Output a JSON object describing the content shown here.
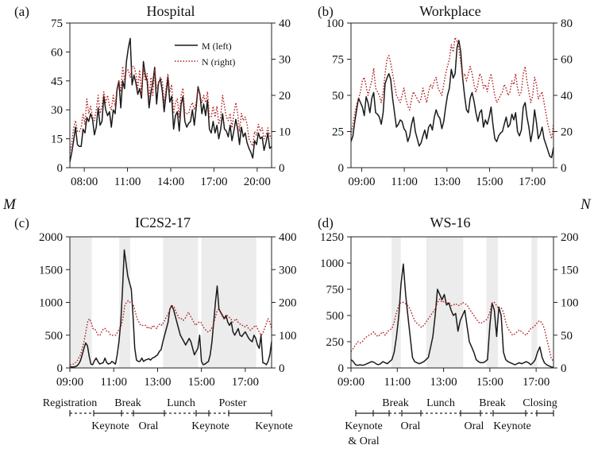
{
  "figure": {
    "side_left_label": "M",
    "side_right_label": "N"
  },
  "colors": {
    "m_line": "#1a1a1a",
    "n_line": "#b22222",
    "shade": "#ececec"
  },
  "chart_data": [
    {
      "id": "a",
      "type": "line",
      "panel_label": "(a)",
      "title": "Hospital",
      "legend": {
        "placement": "top-right",
        "m": "M (left)",
        "n": "N (right)"
      },
      "x_start": 7.0,
      "x_end": 21.0,
      "xticks": [
        8,
        11,
        14,
        17,
        20
      ],
      "xtick_labels": [
        "08:00",
        "11:00",
        "14:00",
        "17:00",
        "20:00"
      ],
      "ylim_left": [
        0,
        75
      ],
      "yticks_left": [
        0,
        15,
        30,
        45,
        60,
        75
      ],
      "ylim_right": [
        0,
        40
      ],
      "yticks_right": [
        0,
        10,
        20,
        30,
        40
      ],
      "series": [
        {
          "name": "M",
          "axis": "left",
          "style": "solid",
          "values": [
            3,
            8,
            14,
            21,
            12,
            11,
            11,
            20,
            18,
            26,
            24,
            28,
            25,
            17,
            21,
            31,
            22,
            24,
            37,
            30,
            27,
            29,
            21,
            30,
            28,
            40,
            45,
            31,
            45,
            41,
            55,
            62,
            67,
            43,
            48,
            44,
            38,
            41,
            36,
            55,
            48,
            45,
            31,
            39,
            44,
            52,
            33,
            44,
            46,
            40,
            29,
            38,
            47,
            34,
            37,
            20,
            27,
            29,
            19,
            33,
            37,
            24,
            21,
            23,
            24,
            30,
            22,
            31,
            42,
            38,
            28,
            33,
            27,
            35,
            20,
            18,
            24,
            18,
            22,
            15,
            20,
            28,
            20,
            19,
            16,
            22,
            14,
            19,
            25,
            20,
            12,
            21,
            16,
            18,
            13,
            10,
            8,
            5,
            14,
            12,
            18,
            15,
            16,
            9,
            13,
            18,
            10,
            11
          ],
          "source_note": "approximate readings"
        },
        {
          "name": "N",
          "axis": "right",
          "style": "dotted",
          "values": [
            4,
            7,
            11,
            13,
            10,
            10,
            11,
            15,
            12,
            19,
            15,
            17,
            14,
            13,
            16,
            20,
            15,
            17,
            21,
            18,
            20,
            17,
            16,
            20,
            17,
            22,
            24,
            21,
            28,
            24,
            27,
            27,
            25,
            28,
            28,
            26,
            22,
            27,
            20,
            28,
            24,
            26,
            19,
            25,
            20,
            27,
            22,
            23,
            25,
            24,
            18,
            22,
            26,
            21,
            23,
            15,
            18,
            19,
            14,
            20,
            22,
            15,
            15,
            15,
            17,
            18,
            16,
            18,
            22,
            20,
            18,
            20,
            18,
            21,
            14,
            14,
            17,
            14,
            17,
            12,
            14,
            20,
            17,
            14,
            13,
            15,
            11,
            15,
            18,
            15,
            10,
            15,
            13,
            14,
            12,
            8,
            7,
            6,
            10,
            9,
            12,
            10,
            11,
            8,
            9,
            11,
            9,
            8
          ]
        }
      ]
    },
    {
      "id": "b",
      "type": "line",
      "panel_label": "(b)",
      "title": "Workplace",
      "x_start": 8.5,
      "x_end": 18.0,
      "xticks": [
        9,
        11,
        13,
        15,
        17
      ],
      "xtick_labels": [
        "09:00",
        "11:00",
        "13:00",
        "15:00",
        "17:00"
      ],
      "ylim_left": [
        0,
        100
      ],
      "yticks_left": [
        0,
        25,
        50,
        75,
        100
      ],
      "ylim_right": [
        0,
        80
      ],
      "yticks_right": [
        0,
        20,
        40,
        60,
        80
      ],
      "series": [
        {
          "name": "M",
          "axis": "left",
          "style": "solid",
          "values": [
            18,
            22,
            32,
            40,
            48,
            45,
            42,
            36,
            49,
            45,
            38,
            48,
            52,
            38,
            37,
            35,
            30,
            38,
            58,
            62,
            65,
            61,
            48,
            38,
            28,
            30,
            33,
            32,
            27,
            25,
            18,
            22,
            30,
            35,
            25,
            20,
            15,
            17,
            22,
            26,
            20,
            28,
            30,
            26,
            35,
            40,
            36,
            34,
            27,
            32,
            42,
            50,
            55,
            68,
            62,
            65,
            83,
            88,
            80,
            62,
            50,
            40,
            38,
            48,
            52,
            46,
            38,
            32,
            38,
            40,
            28,
            33,
            30,
            35,
            42,
            30,
            20,
            18,
            22,
            24,
            25,
            30,
            35,
            28,
            30,
            37,
            33,
            38,
            25,
            22,
            26,
            42,
            45,
            35,
            28,
            18,
            26,
            40,
            31,
            20,
            23,
            28,
            20,
            16,
            12,
            8,
            7,
            14
          ],
          "source_note": "approximate readings"
        },
        {
          "name": "N",
          "axis": "right",
          "style": "dotted",
          "values": [
            18,
            24,
            30,
            35,
            38,
            42,
            48,
            50,
            45,
            40,
            44,
            48,
            55,
            44,
            42,
            40,
            36,
            42,
            52,
            60,
            62,
            58,
            52,
            46,
            40,
            38,
            36,
            40,
            44,
            38,
            34,
            32,
            38,
            42,
            40,
            38,
            36,
            38,
            44,
            40,
            36,
            42,
            46,
            44,
            48,
            50,
            44,
            42,
            40,
            46,
            52,
            56,
            60,
            68,
            64,
            72,
            70,
            66,
            58,
            50,
            52,
            48,
            52,
            56,
            52,
            46,
            42,
            46,
            52,
            50,
            44,
            46,
            42,
            48,
            52,
            46,
            40,
            36,
            38,
            40,
            42,
            46,
            44,
            40,
            42,
            48,
            46,
            52,
            44,
            40,
            42,
            52,
            56,
            48,
            42,
            36,
            40,
            50,
            46,
            38,
            40,
            42,
            36,
            30,
            24,
            20,
            16,
            24
          ]
        }
      ]
    },
    {
      "id": "c",
      "type": "line",
      "panel_label": "(c)",
      "title": "IC2S2-17",
      "x_start": 9.0,
      "x_end": 18.2,
      "xticks": [
        9,
        11,
        13,
        15,
        17
      ],
      "xtick_labels": [
        "09:00",
        "11:00",
        "13:00",
        "15:00",
        "17:00"
      ],
      "ylim_left": [
        0,
        2000
      ],
      "yticks_left": [
        0,
        500,
        1000,
        1500,
        2000
      ],
      "ylim_right": [
        0,
        400
      ],
      "yticks_right": [
        0,
        100,
        200,
        300,
        400
      ],
      "shaded_spans": [
        [
          9.0,
          10.0
        ],
        [
          11.25,
          11.75
        ],
        [
          13.25,
          14.85
        ],
        [
          15.0,
          17.5
        ]
      ],
      "series": [
        {
          "name": "M",
          "axis": "left",
          "style": "solid",
          "values": [
            20,
            15,
            15,
            20,
            30,
            60,
            110,
            200,
            300,
            380,
            340,
            180,
            60,
            50,
            110,
            150,
            100,
            60,
            70,
            80,
            150,
            80,
            60,
            70,
            100,
            80,
            60,
            200,
            400,
            700,
            1200,
            1800,
            1600,
            1400,
            1300,
            1200,
            800,
            300,
            120,
            100,
            100,
            150,
            100,
            120,
            130,
            140,
            120,
            150,
            160,
            180,
            200,
            250,
            280,
            400,
            500,
            600,
            700,
            900,
            950,
            900,
            800,
            700,
            600,
            500,
            450,
            400,
            350,
            400,
            450,
            400,
            300,
            200,
            250,
            300,
            500,
            100,
            50,
            60,
            80,
            100,
            200,
            400,
            700,
            1000,
            1250,
            900,
            850,
            800,
            750,
            800,
            700,
            650,
            700,
            550,
            500,
            550,
            600,
            500,
            480,
            520,
            550,
            500,
            450,
            420,
            400,
            500,
            450,
            350,
            300,
            500,
            80,
            70,
            50,
            100,
            200,
            400
          ],
          "source_note": "approximate readings"
        },
        {
          "name": "N",
          "axis": "right",
          "style": "dotted",
          "values": [
            10,
            10,
            12,
            15,
            20,
            30,
            40,
            60,
            80,
            110,
            140,
            150,
            140,
            120,
            120,
            110,
            100,
            100,
            110,
            120,
            120,
            110,
            110,
            100,
            100,
            100,
            100,
            110,
            120,
            130,
            150,
            190,
            200,
            205,
            200,
            200,
            190,
            170,
            150,
            140,
            130,
            130,
            130,
            130,
            120,
            125,
            120,
            130,
            125,
            120,
            130,
            135,
            130,
            140,
            150,
            160,
            170,
            185,
            190,
            185,
            170,
            160,
            150,
            150,
            145,
            150,
            160,
            170,
            160,
            150,
            140,
            130,
            135,
            140,
            140,
            130,
            120,
            115,
            110,
            112,
            120,
            130,
            150,
            170,
            180,
            170,
            160,
            150,
            150,
            160,
            155,
            150,
            140,
            145,
            150,
            140,
            135,
            130,
            130,
            125,
            130,
            120,
            115,
            120,
            125,
            130,
            120,
            110,
            100,
            105,
            120,
            135,
            150,
            140,
            120
          ]
        }
      ]
    },
    {
      "id": "d",
      "type": "line",
      "panel_label": "(d)",
      "title": "WS-16",
      "x_start": 9.0,
      "x_end": 17.75,
      "xticks": [
        9,
        11,
        13,
        15,
        17
      ],
      "xtick_labels": [
        "09:00",
        "11:00",
        "13:00",
        "15:00",
        "17:00"
      ],
      "ylim_left": [
        0,
        1250
      ],
      "yticks_left": [
        0,
        250,
        500,
        750,
        1000,
        1250
      ],
      "ylim_right": [
        0,
        200
      ],
      "yticks_right": [
        0,
        50,
        100,
        150,
        200
      ],
      "shaded_spans": [
        [
          10.75,
          11.15
        ],
        [
          12.25,
          13.85
        ],
        [
          14.85,
          15.35
        ],
        [
          16.8,
          17.05
        ]
      ],
      "series": [
        {
          "name": "M",
          "axis": "left",
          "style": "solid",
          "values": [
            80,
            60,
            30,
            25,
            30,
            25,
            30,
            40,
            50,
            60,
            55,
            40,
            30,
            40,
            60,
            50,
            40,
            60,
            80,
            150,
            300,
            500,
            800,
            990,
            700,
            500,
            300,
            100,
            60,
            50,
            40,
            50,
            60,
            80,
            100,
            200,
            300,
            500,
            750,
            700,
            650,
            700,
            600,
            620,
            550,
            500,
            520,
            350,
            450,
            500,
            550,
            400,
            250,
            200,
            150,
            80,
            60,
            50,
            50,
            60,
            80,
            400,
            620,
            550,
            300,
            580,
            500,
            150,
            80,
            60,
            50,
            40,
            30,
            40,
            50,
            40,
            50,
            60,
            50,
            30,
            50,
            80,
            150,
            200,
            100,
            50,
            30,
            20,
            10,
            5
          ],
          "source_note": "approximate readings"
        },
        {
          "name": "N",
          "axis": "right",
          "style": "dotted",
          "values": [
            25,
            30,
            35,
            40,
            38,
            40,
            45,
            48,
            50,
            52,
            55,
            50,
            48,
            52,
            55,
            50,
            55,
            58,
            60,
            70,
            85,
            95,
            100,
            100,
            98,
            95,
            90,
            80,
            72,
            68,
            65,
            62,
            65,
            70,
            75,
            80,
            85,
            90,
            100,
            105,
            100,
            102,
            98,
            100,
            95,
            96,
            98,
            95,
            96,
            100,
            98,
            96,
            90,
            85,
            80,
            75,
            70,
            68,
            70,
            72,
            75,
            85,
            98,
            100,
            95,
            90,
            92,
            85,
            70,
            60,
            55,
            50,
            52,
            55,
            58,
            55,
            52,
            50,
            55,
            60,
            62,
            65,
            70,
            72,
            68,
            60,
            45,
            30,
            15,
            10
          ]
        }
      ]
    }
  ],
  "session_labels": {
    "c": [
      {
        "text": "Registration",
        "row": "top"
      },
      {
        "text": "Break",
        "row": "top"
      },
      {
        "text": "Lunch",
        "row": "top"
      },
      {
        "text": "Poster",
        "row": "top"
      },
      {
        "text": "Keynote",
        "row": "bottom"
      },
      {
        "text": "Oral",
        "row": "bottom"
      },
      {
        "text": "Keynote",
        "row": "bottom"
      },
      {
        "text": "Keynote",
        "row": "bottom"
      }
    ],
    "d": [
      {
        "text": "Break",
        "row": "top"
      },
      {
        "text": "Lunch",
        "row": "top"
      },
      {
        "text": "Break",
        "row": "top"
      },
      {
        "text": "Closing",
        "row": "top"
      },
      {
        "text": "Keynote",
        "row": "bottom"
      },
      {
        "text": "& Oral",
        "row": "bottom2"
      },
      {
        "text": "Oral",
        "row": "bottom"
      },
      {
        "text": "Oral",
        "row": "bottom"
      },
      {
        "text": "Keynote",
        "row": "bottom"
      }
    ]
  }
}
